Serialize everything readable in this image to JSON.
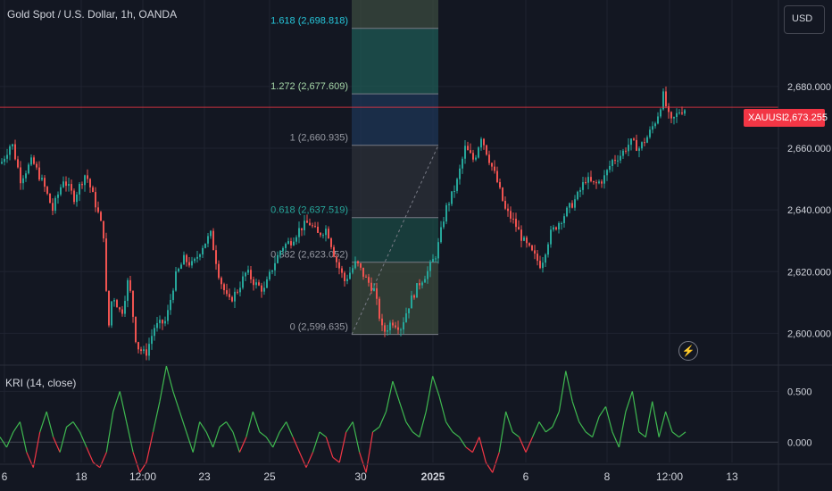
{
  "header": {
    "title": "Gold Spot / U.S. Dollar, 1h, OANDA",
    "currency_button": "USD"
  },
  "last_price": {
    "symbol": "XAUUSD",
    "value": "2,673.255"
  },
  "indicator": {
    "title": "KRI (14, close)"
  },
  "icons": {
    "alert": "lightning-bolt-icon"
  },
  "colors": {
    "background": "#131722",
    "up": "#26a69a",
    "down": "#ef5350",
    "kri_positive": "#3fb950",
    "kri_negative": "#f23645",
    "price_line": "#f23645"
  },
  "chart_data": [
    {
      "type": "candlestick",
      "title": "Gold Spot / U.S. Dollar, 1h, OANDA",
      "ylim": [
        2590,
        2708
      ],
      "y_ticks": [
        "2,600.000",
        "2,620.000",
        "2,640.000",
        "2,660.000",
        "2,680.000"
      ],
      "y_tick_values": [
        2600,
        2620,
        2640,
        2660,
        2680
      ],
      "x_ticks": [
        "6",
        "18",
        "12:00",
        "23",
        "25",
        "30",
        "2025",
        "6",
        "8",
        "12:00",
        "13"
      ],
      "grid": true,
      "last_price": 2673.255,
      "price_path": [
        [
          0,
          2655
        ],
        [
          12,
          2662
        ],
        [
          22,
          2650
        ],
        [
          35,
          2656
        ],
        [
          48,
          2648
        ],
        [
          58,
          2640
        ],
        [
          70,
          2650
        ],
        [
          82,
          2644
        ],
        [
          95,
          2652
        ],
        [
          108,
          2640
        ],
        [
          115,
          2632
        ],
        [
          120,
          2600
        ],
        [
          125,
          2613
        ],
        [
          135,
          2606
        ],
        [
          143,
          2618
        ],
        [
          152,
          2596
        ],
        [
          162,
          2593
        ],
        [
          172,
          2602
        ],
        [
          185,
          2604
        ],
        [
          195,
          2618
        ],
        [
          205,
          2624
        ],
        [
          215,
          2622
        ],
        [
          225,
          2628
        ],
        [
          235,
          2632
        ],
        [
          245,
          2618
        ],
        [
          255,
          2610
        ],
        [
          265,
          2614
        ],
        [
          275,
          2620
        ],
        [
          285,
          2616
        ],
        [
          295,
          2614
        ],
        [
          305,
          2622
        ],
        [
          315,
          2628
        ],
        [
          325,
          2630
        ],
        [
          335,
          2634
        ],
        [
          345,
          2636
        ],
        [
          355,
          2632
        ],
        [
          365,
          2634
        ],
        [
          375,
          2624
        ],
        [
          385,
          2617
        ],
        [
          398,
          2623
        ],
        [
          408,
          2618
        ],
        [
          418,
          2614
        ],
        [
          428,
          2600
        ],
        [
          438,
          2604
        ],
        [
          448,
          2602
        ],
        [
          458,
          2610
        ],
        [
          468,
          2616
        ],
        [
          478,
          2620
        ],
        [
          488,
          2626
        ],
        [
          498,
          2640
        ],
        [
          510,
          2648
        ],
        [
          520,
          2660
        ],
        [
          530,
          2656
        ],
        [
          538,
          2664
        ],
        [
          545,
          2658
        ],
        [
          555,
          2650
        ],
        [
          565,
          2640
        ],
        [
          575,
          2636
        ],
        [
          585,
          2630
        ],
        [
          595,
          2626
        ],
        [
          605,
          2622
        ],
        [
          615,
          2632
        ],
        [
          625,
          2636
        ],
        [
          635,
          2640
        ],
        [
          645,
          2644
        ],
        [
          655,
          2650
        ],
        [
          665,
          2648
        ],
        [
          675,
          2650
        ],
        [
          685,
          2656
        ],
        [
          695,
          2658
        ],
        [
          705,
          2662
        ],
        [
          715,
          2660
        ],
        [
          725,
          2664
        ],
        [
          735,
          2670
        ],
        [
          742,
          2677
        ],
        [
          750,
          2668
        ],
        [
          760,
          2672
        ],
        [
          768,
          2673
        ]
      ],
      "fibonacci": {
        "levels": [
          {
            "ratio": 0,
            "label": "0 (2,599.635)",
            "price": 2599.635
          },
          {
            "ratio": 0.382,
            "label": "0.382 (2,623.052)",
            "price": 2623.052
          },
          {
            "ratio": 0.618,
            "label": "0.618 (2,637.519)",
            "price": 2637.519
          },
          {
            "ratio": 1,
            "label": "1 (2,660.935)",
            "price": 2660.935
          },
          {
            "ratio": 1.272,
            "label": "1.272 (2,677.609)",
            "price": 2677.609
          },
          {
            "ratio": 1.618,
            "label": "1.618 (2,698.818)",
            "price": 2698.818
          }
        ],
        "colors": [
          "#3a3f3a",
          "#434651",
          "#0d3a36",
          "#2a2e39",
          "#1e3a5f",
          "#1f5f58",
          "#3d4f40"
        ]
      }
    },
    {
      "type": "line",
      "title": "KRI (14, close)",
      "ylim": [
        -0.2,
        0.75
      ],
      "y_ticks": [
        "0.500",
        "0.000"
      ],
      "y_tick_values": [
        0.5,
        0
      ],
      "zero_line": 0,
      "series": [
        {
          "values": [
            0.05,
            -0.05,
            0.1,
            0.2,
            -0.1,
            -0.25,
            0.1,
            0.3,
            0.05,
            -0.1,
            0.15,
            0.2,
            0.1,
            -0.05,
            -0.2,
            -0.25,
            -0.1,
            0.3,
            0.5,
            0.2,
            -0.1,
            -0.3,
            -0.2,
            0.1,
            0.4,
            0.75,
            0.5,
            0.3,
            0.1,
            -0.1,
            0.2,
            0.1,
            -0.05,
            0.15,
            0.2,
            0.1,
            -0.1,
            0.05,
            0.3,
            0.1,
            0.05,
            -0.05,
            0.1,
            0.2,
            0.05,
            -0.1,
            -0.25,
            -0.1,
            0.1,
            0.05,
            -0.15,
            -0.2,
            0.1,
            0.2,
            -0.1,
            -0.3,
            0.1,
            0.15,
            0.3,
            0.6,
            0.4,
            0.2,
            0.1,
            0.05,
            0.3,
            0.65,
            0.45,
            0.2,
            0.1,
            0.05,
            -0.05,
            -0.1,
            0.05,
            -0.2,
            -0.3,
            -0.1,
            0.3,
            0.1,
            0.05,
            -0.1,
            0.05,
            0.2,
            0.1,
            0.15,
            0.3,
            0.7,
            0.4,
            0.2,
            0.1,
            0.05,
            0.25,
            0.35,
            0.1,
            -0.05,
            0.3,
            0.5,
            0.1,
            0.05,
            0.4,
            0.05,
            0.3,
            0.1,
            0.05,
            0.1
          ]
        }
      ]
    }
  ]
}
